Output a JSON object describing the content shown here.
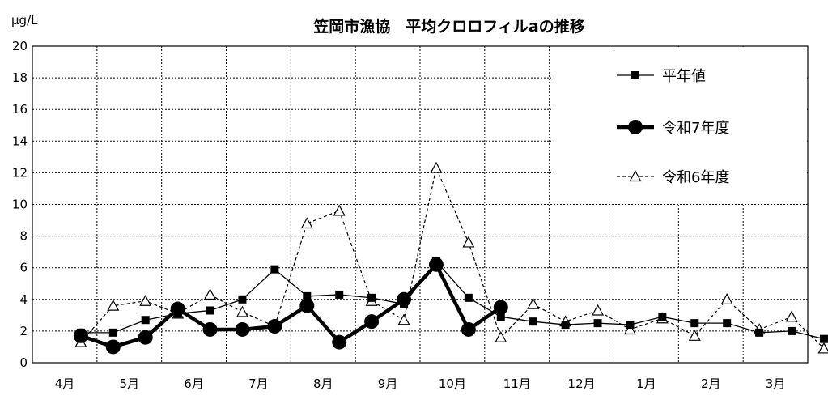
{
  "chart_data": {
    "type": "line",
    "title": "笠岡市漁協　平均クロロフィルaの推移",
    "ylabel": "μg/L",
    "xlabel": "",
    "ylim": [
      0,
      20
    ],
    "yticks": [
      0,
      2,
      4,
      6,
      8,
      10,
      12,
      14,
      16,
      18,
      20
    ],
    "grid": true,
    "legend_position": "top-right",
    "categories": [
      "4月",
      "5月",
      "6月",
      "7月",
      "8月",
      "9月",
      "10月",
      "11月",
      "12月",
      "1月",
      "2月",
      "3月"
    ],
    "series": [
      {
        "name": "平年値",
        "style": "thin-solid-square",
        "color": "#000000",
        "x": [
          0.75,
          1.25,
          1.75,
          2.25,
          2.75,
          3.25,
          3.75,
          4.25,
          4.75,
          5.25,
          5.75,
          6.25,
          6.75,
          7.25,
          7.75,
          8.25,
          8.75,
          9.25,
          9.75,
          10.25,
          10.75,
          11.25,
          11.75,
          12.25
        ],
        "values": [
          1.9,
          1.9,
          2.7,
          3.1,
          3.3,
          4.0,
          5.9,
          4.2,
          4.3,
          4.1,
          3.7,
          6.4,
          4.1,
          2.9,
          2.6,
          2.4,
          2.5,
          2.4,
          2.9,
          2.5,
          2.5,
          1.9,
          2.0,
          1.5
        ]
      },
      {
        "name": "令和7年度",
        "style": "thick-solid-circle",
        "color": "#000000",
        "x": [
          0.75,
          1.25,
          1.75,
          2.25,
          2.75,
          3.25,
          3.75,
          4.25,
          4.75,
          5.25,
          5.75,
          6.25,
          6.75,
          7.25
        ],
        "values": [
          1.7,
          1.0,
          1.6,
          3.4,
          2.1,
          2.1,
          2.3,
          3.6,
          1.3,
          2.6,
          4.0,
          6.2,
          2.1,
          3.5
        ]
      },
      {
        "name": "令和6年度",
        "style": "dashed-open-triangle",
        "color": "#000000",
        "x": [
          0.75,
          1.25,
          1.75,
          2.25,
          2.75,
          3.25,
          3.75,
          4.25,
          4.75,
          5.25,
          5.75,
          6.25,
          6.75,
          7.25,
          7.75,
          8.25,
          8.75,
          9.25,
          9.75,
          10.25,
          10.75,
          11.25,
          11.75,
          12.25
        ],
        "values": [
          1.3,
          3.6,
          3.9,
          3.1,
          4.3,
          3.2,
          2.3,
          8.8,
          9.6,
          3.9,
          2.7,
          12.3,
          7.6,
          1.6,
          3.7,
          2.6,
          3.3,
          2.1,
          2.8,
          1.7,
          4.0,
          2.1,
          2.9,
          0.9
        ]
      }
    ]
  }
}
